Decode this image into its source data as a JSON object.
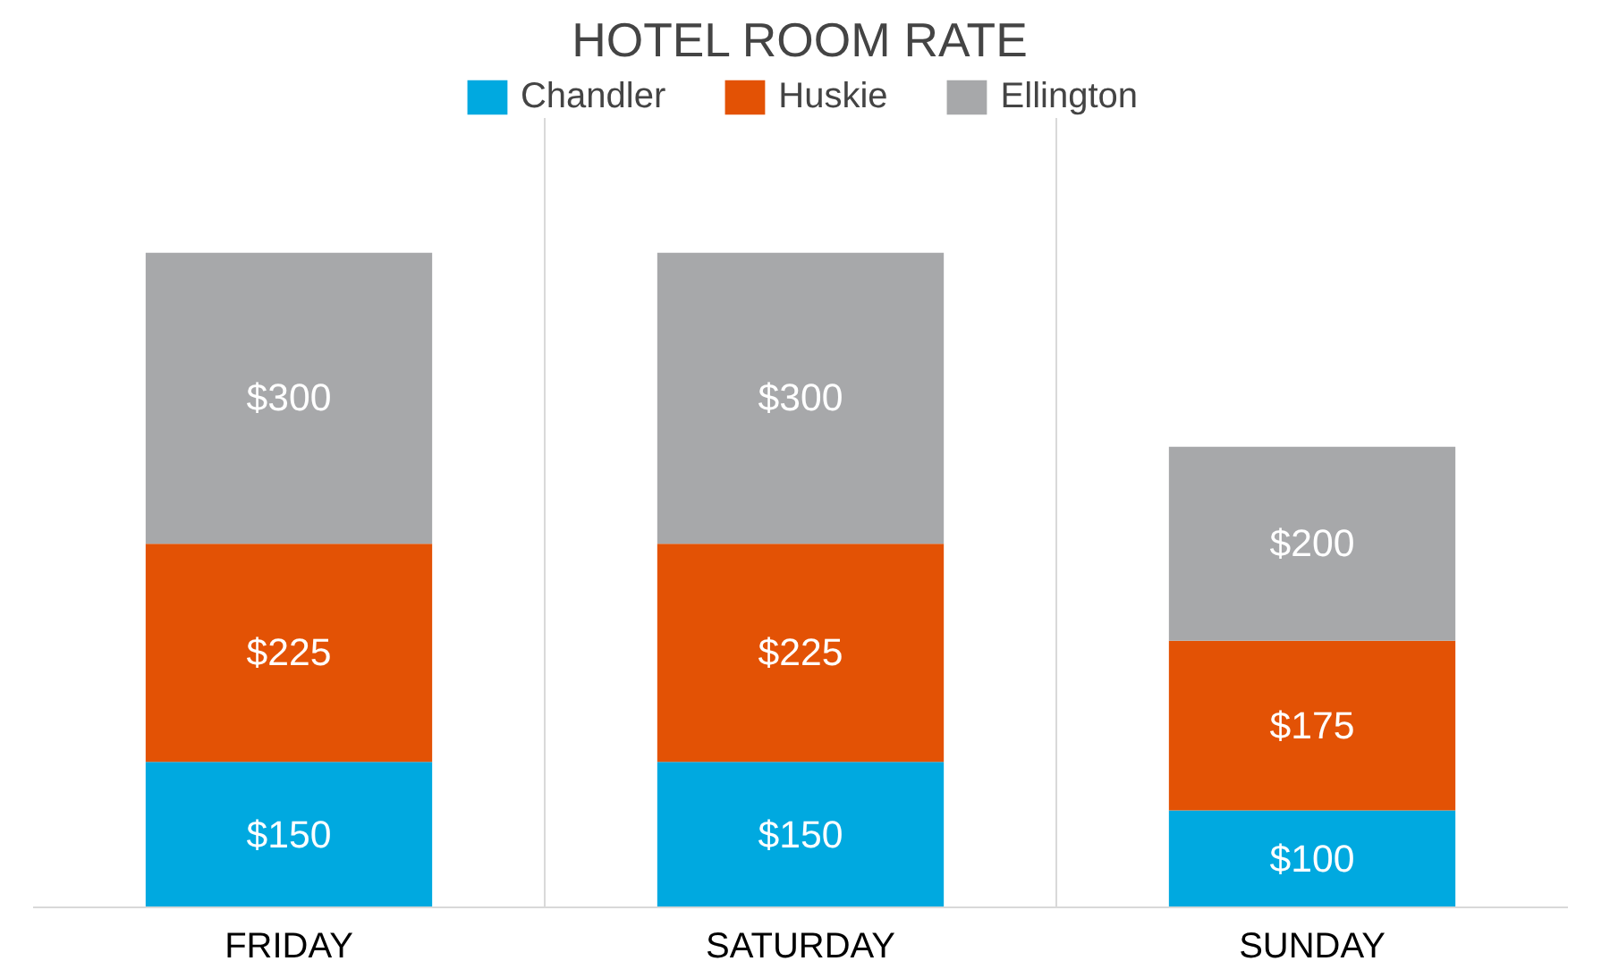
{
  "chart_data": {
    "type": "bar",
    "title": "HOTEL ROOM RATE",
    "categories": [
      "FRIDAY",
      "SATURDAY",
      "SUNDAY"
    ],
    "stacked": true,
    "grid": "x",
    "legend": "top",
    "series": [
      {
        "name": "Chandler",
        "color": "#00a9e0",
        "values": [
          150,
          150,
          100
        ],
        "value_labels": [
          "$150",
          "$150",
          "$100"
        ]
      },
      {
        "name": "Huskie",
        "color": "#e35205",
        "values": [
          225,
          225,
          175
        ],
        "value_labels": [
          "$225",
          "$225",
          "$175"
        ]
      },
      {
        "name": "Ellington",
        "color": "#a7a8aa",
        "values": [
          300,
          300,
          200
        ],
        "value_labels": [
          "$300",
          "$300",
          "$200"
        ]
      }
    ]
  }
}
